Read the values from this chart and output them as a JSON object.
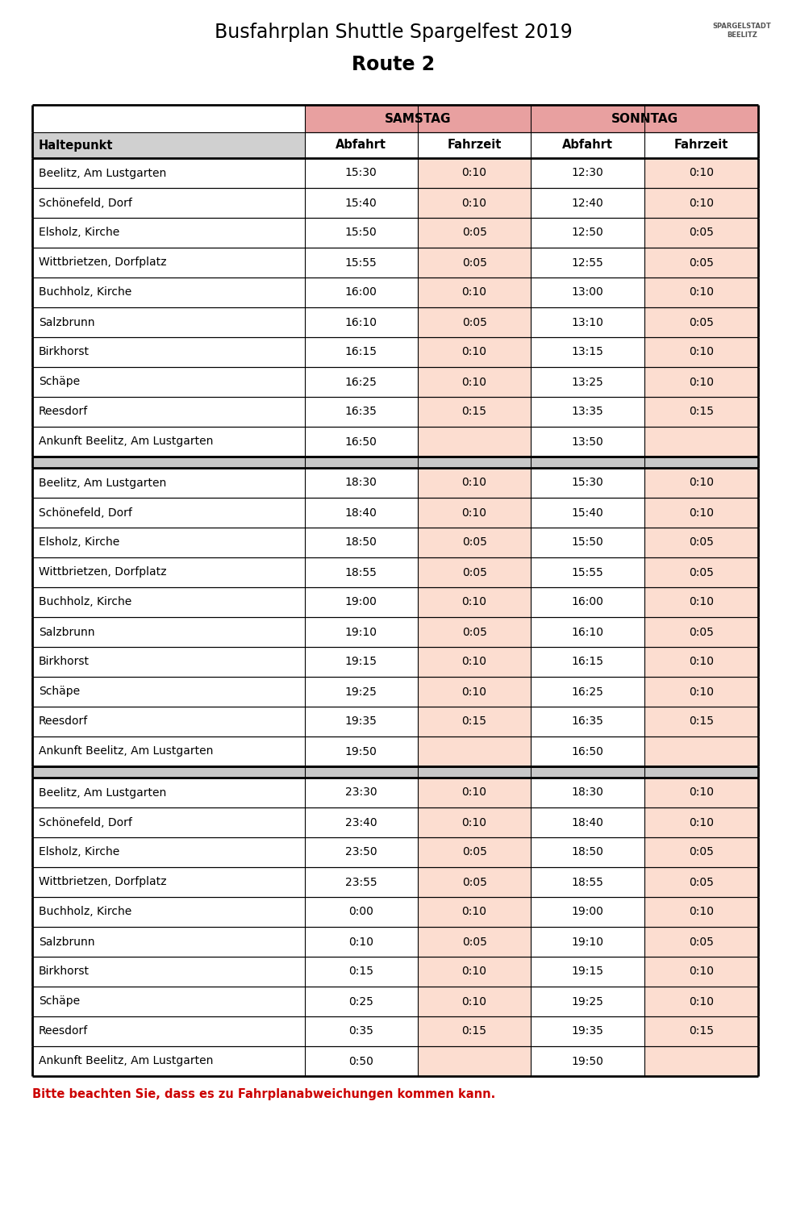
{
  "title_line1": "Busfahrplan Shuttle Spargelfest 2019",
  "title_line2": "Route 2",
  "col_header_row2": [
    "Haltepunkt",
    "Abfahrt",
    "Fahrzeit",
    "Abfahrt",
    "Fahrzeit"
  ],
  "groups": [
    {
      "rows": [
        [
          "Beelitz, Am Lustgarten",
          "15:30",
          "0:10",
          "12:30",
          "0:10"
        ],
        [
          "Schönefeld, Dorf",
          "15:40",
          "0:10",
          "12:40",
          "0:10"
        ],
        [
          "Elsholz, Kirche",
          "15:50",
          "0:05",
          "12:50",
          "0:05"
        ],
        [
          "Wittbrietzen, Dorfplatz",
          "15:55",
          "0:05",
          "12:55",
          "0:05"
        ],
        [
          "Buchholz, Kirche",
          "16:00",
          "0:10",
          "13:00",
          "0:10"
        ],
        [
          "Salzbrunn",
          "16:10",
          "0:05",
          "13:10",
          "0:05"
        ],
        [
          "Birkhorst",
          "16:15",
          "0:10",
          "13:15",
          "0:10"
        ],
        [
          "Schäpe",
          "16:25",
          "0:10",
          "13:25",
          "0:10"
        ],
        [
          "Reesdorf",
          "16:35",
          "0:15",
          "13:35",
          "0:15"
        ],
        [
          "Ankunft Beelitz, Am Lustgarten",
          "16:50",
          "",
          "13:50",
          ""
        ]
      ]
    },
    {
      "rows": [
        [
          "Beelitz, Am Lustgarten",
          "18:30",
          "0:10",
          "15:30",
          "0:10"
        ],
        [
          "Schönefeld, Dorf",
          "18:40",
          "0:10",
          "15:40",
          "0:10"
        ],
        [
          "Elsholz, Kirche",
          "18:50",
          "0:05",
          "15:50",
          "0:05"
        ],
        [
          "Wittbrietzen, Dorfplatz",
          "18:55",
          "0:05",
          "15:55",
          "0:05"
        ],
        [
          "Buchholz, Kirche",
          "19:00",
          "0:10",
          "16:00",
          "0:10"
        ],
        [
          "Salzbrunn",
          "19:10",
          "0:05",
          "16:10",
          "0:05"
        ],
        [
          "Birkhorst",
          "19:15",
          "0:10",
          "16:15",
          "0:10"
        ],
        [
          "Schäpe",
          "19:25",
          "0:10",
          "16:25",
          "0:10"
        ],
        [
          "Reesdorf",
          "19:35",
          "0:15",
          "16:35",
          "0:15"
        ],
        [
          "Ankunft Beelitz, Am Lustgarten",
          "19:50",
          "",
          "16:50",
          ""
        ]
      ]
    },
    {
      "rows": [
        [
          "Beelitz, Am Lustgarten",
          "23:30",
          "0:10",
          "18:30",
          "0:10"
        ],
        [
          "Schönefeld, Dorf",
          "23:40",
          "0:10",
          "18:40",
          "0:10"
        ],
        [
          "Elsholz, Kirche",
          "23:50",
          "0:05",
          "18:50",
          "0:05"
        ],
        [
          "Wittbrietzen, Dorfplatz",
          "23:55",
          "0:05",
          "18:55",
          "0:05"
        ],
        [
          "Buchholz, Kirche",
          "0:00",
          "0:10",
          "19:00",
          "0:10"
        ],
        [
          "Salzbrunn",
          "0:10",
          "0:05",
          "19:10",
          "0:05"
        ],
        [
          "Birkhorst",
          "0:15",
          "0:10",
          "19:15",
          "0:10"
        ],
        [
          "Schäpe",
          "0:25",
          "0:10",
          "19:25",
          "0:10"
        ],
        [
          "Reesdorf",
          "0:35",
          "0:15",
          "19:35",
          "0:15"
        ],
        [
          "Ankunft Beelitz, Am Lustgarten",
          "0:50",
          "",
          "19:50",
          ""
        ]
      ]
    }
  ],
  "footer_text": "Bitte beachten Sie, dass es zu Fahrplanabweichungen kommen kann.",
  "header_pink": "#E8A0A0",
  "cell_pink": "#FCDDD0",
  "header_gray": "#D0D0D0",
  "separator_gray": "#C8C8C8",
  "footer_color": "#CC0000"
}
